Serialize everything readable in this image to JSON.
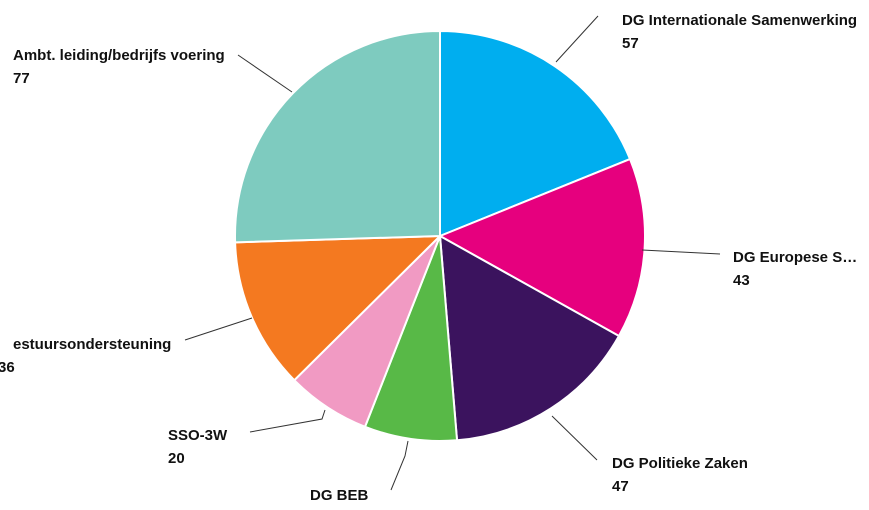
{
  "chart_data": {
    "type": "pie",
    "categories": [
      "DG Internationale Samenwerking",
      "DG Europese S…",
      "DG Politieke Zaken",
      "DG BEB",
      "SSO-3W",
      "estuursondersteuning",
      "Ambt. leiding/bedrijfs voering"
    ],
    "values": [
      57,
      43,
      47,
      22,
      20,
      36,
      77
    ],
    "colors": [
      "#00aeef",
      "#e6007e",
      "#3b135e",
      "#58b947",
      "#f19ac3",
      "#f47920",
      "#7ecbbf"
    ]
  }
}
